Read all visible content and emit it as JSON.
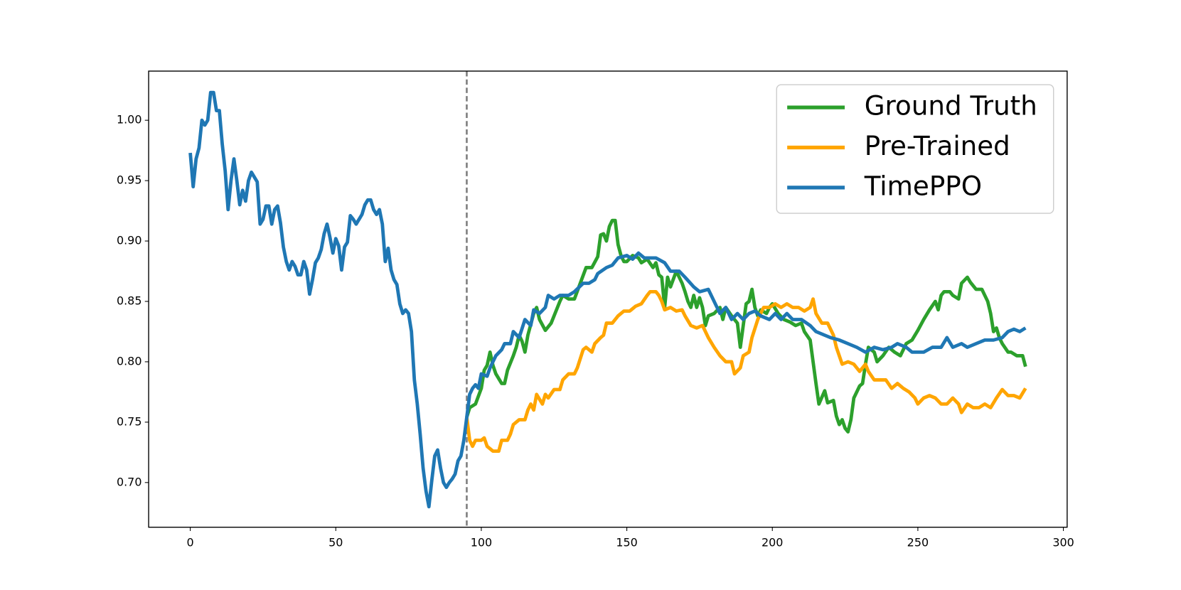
{
  "chart_data": {
    "type": "line",
    "xlim": [
      -14.3,
      301.3
    ],
    "ylim": [
      0.663,
      1.0407
    ],
    "xticks": [
      0,
      50,
      100,
      150,
      200,
      250,
      300
    ],
    "yticks": [
      {
        "value": 0.7,
        "label": "0.70"
      },
      {
        "value": 0.75,
        "label": "0.75"
      },
      {
        "value": 0.8,
        "label": "0.80"
      },
      {
        "value": 0.85,
        "label": "0.85"
      },
      {
        "value": 0.9,
        "label": "0.90"
      },
      {
        "value": 0.95,
        "label": "0.95"
      },
      {
        "value": 1.0,
        "label": "1.00"
      }
    ],
    "vline": 95,
    "vline_color": "#808080",
    "grid": false,
    "legend": "upper right",
    "series": [
      {
        "name": "Ground Truth",
        "color": "#2ca02c",
        "x": [
          95,
          96,
          98,
          100,
          101,
          102,
          103,
          104,
          105,
          107,
          108,
          109,
          111,
          112,
          113,
          114,
          115,
          116,
          118,
          119,
          120,
          122,
          124,
          125,
          127,
          128,
          130,
          132,
          134,
          136,
          138,
          140,
          141,
          142,
          143,
          144,
          145,
          146,
          147,
          148,
          149,
          150,
          152,
          154,
          155,
          157,
          159,
          160,
          161,
          162,
          163,
          164,
          165,
          167,
          169,
          170,
          171,
          172,
          173,
          174,
          175,
          176,
          177,
          178,
          180,
          182,
          183,
          184,
          186,
          188,
          189,
          190,
          191,
          192,
          193,
          194,
          195,
          196,
          198,
          199,
          200,
          202,
          204,
          206,
          208,
          210,
          211,
          213,
          214,
          215,
          216,
          218,
          219,
          221,
          222,
          223,
          224,
          225,
          226,
          227,
          228,
          229,
          230,
          231,
          232,
          233,
          235,
          236,
          238,
          240,
          242,
          244,
          246,
          248,
          250,
          252,
          254,
          256,
          257,
          258,
          259,
          261,
          262,
          264,
          265,
          267,
          268,
          270,
          272,
          274,
          275,
          276,
          277,
          278,
          279,
          281,
          282,
          284,
          286,
          287
        ],
        "values": [
          0.754,
          0.762,
          0.765,
          0.778,
          0.793,
          0.797,
          0.808,
          0.797,
          0.79,
          0.782,
          0.782,
          0.793,
          0.805,
          0.812,
          0.822,
          0.817,
          0.808,
          0.822,
          0.84,
          0.845,
          0.835,
          0.826,
          0.832,
          0.838,
          0.85,
          0.855,
          0.852,
          0.852,
          0.865,
          0.878,
          0.878,
          0.887,
          0.905,
          0.906,
          0.9,
          0.912,
          0.917,
          0.917,
          0.897,
          0.888,
          0.883,
          0.883,
          0.888,
          0.886,
          0.882,
          0.885,
          0.878,
          0.882,
          0.872,
          0.87,
          0.845,
          0.87,
          0.862,
          0.875,
          0.865,
          0.858,
          0.85,
          0.845,
          0.855,
          0.845,
          0.853,
          0.845,
          0.83,
          0.838,
          0.84,
          0.845,
          0.835,
          0.845,
          0.838,
          0.832,
          0.812,
          0.83,
          0.848,
          0.85,
          0.86,
          0.845,
          0.838,
          0.843,
          0.84,
          0.845,
          0.848,
          0.84,
          0.835,
          0.833,
          0.83,
          0.832,
          0.825,
          0.818,
          0.8,
          0.782,
          0.765,
          0.776,
          0.766,
          0.768,
          0.755,
          0.748,
          0.752,
          0.745,
          0.742,
          0.752,
          0.77,
          0.775,
          0.78,
          0.782,
          0.798,
          0.812,
          0.808,
          0.8,
          0.805,
          0.812,
          0.808,
          0.805,
          0.815,
          0.818,
          0.826,
          0.835,
          0.843,
          0.85,
          0.843,
          0.855,
          0.858,
          0.858,
          0.855,
          0.852,
          0.865,
          0.87,
          0.866,
          0.86,
          0.86,
          0.85,
          0.84,
          0.825,
          0.828,
          0.82,
          0.815,
          0.808,
          0.808,
          0.805,
          0.805,
          0.796
        ]
      },
      {
        "name": "Pre-Trained",
        "color": "#ffa500",
        "x": [
          95,
          96,
          97,
          98,
          100,
          101,
          102,
          104,
          106,
          107,
          109,
          110,
          111,
          113,
          115,
          116,
          117,
          118,
          119,
          121,
          122,
          123,
          125,
          127,
          128,
          130,
          132,
          133,
          135,
          136,
          138,
          139,
          141,
          142,
          143,
          145,
          147,
          149,
          151,
          153,
          155,
          157,
          158,
          160,
          161,
          162,
          163,
          165,
          167,
          169,
          170,
          172,
          174,
          176,
          178,
          180,
          182,
          184,
          186,
          187,
          189,
          190,
          192,
          193,
          195,
          197,
          199,
          201,
          203,
          205,
          207,
          209,
          211,
          213,
          214,
          215,
          217,
          219,
          221,
          222,
          224,
          226,
          228,
          230,
          232,
          233,
          235,
          237,
          239,
          241,
          243,
          245,
          247,
          249,
          250,
          252,
          254,
          256,
          258,
          260,
          262,
          264,
          265,
          267,
          269,
          271,
          273,
          275,
          277,
          279,
          281,
          283,
          285,
          287
        ],
        "values": [
          0.754,
          0.735,
          0.73,
          0.735,
          0.735,
          0.737,
          0.73,
          0.726,
          0.726,
          0.735,
          0.735,
          0.74,
          0.748,
          0.752,
          0.752,
          0.76,
          0.765,
          0.76,
          0.773,
          0.765,
          0.773,
          0.77,
          0.777,
          0.777,
          0.785,
          0.79,
          0.79,
          0.795,
          0.81,
          0.812,
          0.808,
          0.815,
          0.82,
          0.822,
          0.832,
          0.832,
          0.838,
          0.842,
          0.842,
          0.846,
          0.848,
          0.855,
          0.858,
          0.858,
          0.855,
          0.85,
          0.843,
          0.845,
          0.842,
          0.843,
          0.838,
          0.83,
          0.828,
          0.83,
          0.82,
          0.812,
          0.805,
          0.8,
          0.8,
          0.79,
          0.795,
          0.805,
          0.808,
          0.82,
          0.835,
          0.845,
          0.845,
          0.848,
          0.845,
          0.848,
          0.845,
          0.845,
          0.842,
          0.845,
          0.852,
          0.84,
          0.832,
          0.832,
          0.822,
          0.812,
          0.798,
          0.8,
          0.798,
          0.792,
          0.798,
          0.792,
          0.785,
          0.785,
          0.785,
          0.778,
          0.782,
          0.778,
          0.775,
          0.77,
          0.765,
          0.77,
          0.772,
          0.77,
          0.765,
          0.765,
          0.77,
          0.765,
          0.758,
          0.765,
          0.762,
          0.762,
          0.765,
          0.762,
          0.77,
          0.777,
          0.772,
          0.772,
          0.77,
          0.778
        ]
      },
      {
        "name": "TimePPO",
        "color": "#1f77b4",
        "x": [
          0,
          1,
          2,
          3,
          4,
          5,
          6,
          7,
          8,
          9,
          10,
          11,
          12,
          13,
          14,
          15,
          16,
          17,
          18,
          19,
          20,
          21,
          22,
          23,
          24,
          25,
          26,
          27,
          28,
          29,
          30,
          31,
          32,
          33,
          34,
          35,
          36,
          37,
          38,
          39,
          40,
          41,
          42,
          43,
          44,
          45,
          46,
          47,
          48,
          49,
          50,
          51,
          52,
          53,
          54,
          55,
          56,
          57,
          58,
          59,
          60,
          61,
          62,
          63,
          64,
          65,
          66,
          67,
          68,
          69,
          70,
          71,
          72,
          73,
          74,
          75,
          76,
          77,
          78,
          79,
          80,
          81,
          82,
          83,
          84,
          85,
          86,
          87,
          88,
          89,
          90,
          91,
          92,
          93,
          94,
          95,
          96,
          97,
          98,
          99,
          100,
          102,
          103,
          105,
          107,
          108,
          110,
          111,
          113,
          115,
          117,
          118,
          120,
          122,
          123,
          125,
          127,
          130,
          132,
          135,
          137,
          139,
          140,
          143,
          145,
          147,
          150,
          152,
          154,
          156,
          160,
          163,
          165,
          168,
          170,
          173,
          175,
          178,
          180,
          182,
          184,
          186,
          188,
          190,
          192,
          194,
          196,
          199,
          201,
          203,
          205,
          207,
          210,
          213,
          215,
          218,
          220,
          223,
          226,
          229,
          232,
          235,
          238,
          241,
          243,
          246,
          248,
          252,
          255,
          258,
          260,
          262,
          265,
          267,
          270,
          273,
          276,
          279,
          281,
          283,
          285,
          287
        ],
        "values": [
          0.973,
          0.945,
          0.968,
          0.977,
          1.0,
          0.996,
          1.0,
          1.023,
          1.023,
          1.008,
          1.008,
          0.98,
          0.958,
          0.926,
          0.95,
          0.968,
          0.95,
          0.93,
          0.942,
          0.933,
          0.95,
          0.957,
          0.953,
          0.949,
          0.914,
          0.918,
          0.929,
          0.929,
          0.914,
          0.926,
          0.929,
          0.915,
          0.895,
          0.883,
          0.876,
          0.883,
          0.879,
          0.872,
          0.872,
          0.883,
          0.876,
          0.856,
          0.868,
          0.882,
          0.886,
          0.893,
          0.906,
          0.914,
          0.903,
          0.89,
          0.902,
          0.896,
          0.876,
          0.895,
          0.899,
          0.921,
          0.918,
          0.914,
          0.918,
          0.922,
          0.93,
          0.934,
          0.934,
          0.926,
          0.922,
          0.926,
          0.914,
          0.883,
          0.894,
          0.876,
          0.868,
          0.864,
          0.848,
          0.84,
          0.843,
          0.84,
          0.825,
          0.785,
          0.765,
          0.74,
          0.712,
          0.693,
          0.68,
          0.702,
          0.722,
          0.727,
          0.712,
          0.7,
          0.696,
          0.7,
          0.703,
          0.707,
          0.718,
          0.722,
          0.735,
          0.754,
          0.773,
          0.778,
          0.781,
          0.778,
          0.79,
          0.788,
          0.795,
          0.805,
          0.81,
          0.815,
          0.815,
          0.825,
          0.82,
          0.835,
          0.83,
          0.843,
          0.84,
          0.845,
          0.855,
          0.852,
          0.855,
          0.855,
          0.858,
          0.865,
          0.865,
          0.868,
          0.873,
          0.878,
          0.88,
          0.886,
          0.888,
          0.885,
          0.89,
          0.886,
          0.886,
          0.882,
          0.875,
          0.875,
          0.87,
          0.862,
          0.858,
          0.86,
          0.85,
          0.84,
          0.845,
          0.835,
          0.84,
          0.835,
          0.84,
          0.842,
          0.838,
          0.835,
          0.84,
          0.835,
          0.84,
          0.835,
          0.835,
          0.83,
          0.825,
          0.822,
          0.82,
          0.818,
          0.815,
          0.812,
          0.808,
          0.812,
          0.81,
          0.812,
          0.815,
          0.812,
          0.808,
          0.808,
          0.812,
          0.812,
          0.82,
          0.812,
          0.815,
          0.812,
          0.815,
          0.818,
          0.818,
          0.82,
          0.825,
          0.827,
          0.825,
          0.828
        ]
      }
    ]
  }
}
